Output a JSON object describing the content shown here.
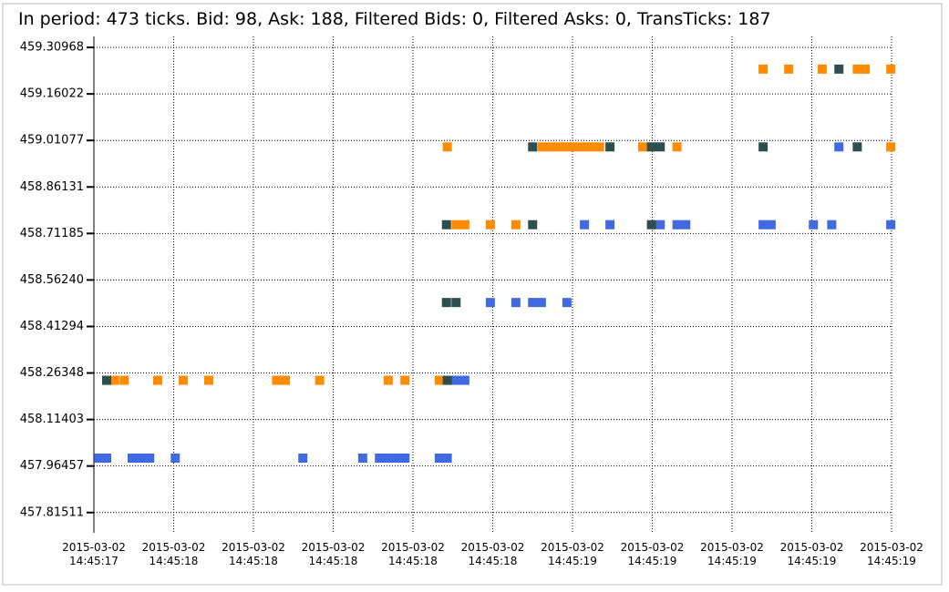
{
  "chart_data": {
    "type": "scatter",
    "title": "In period: 473 ticks. Bid: 98, Ask: 188, Filtered Bids: 0, Filtered Asks: 0, TransTicks: 187",
    "xlim": [
      0,
      10
    ],
    "xticks": [
      {
        "value": 0,
        "label": "2015-03-02\n14:45:17"
      },
      {
        "value": 1,
        "label": "2015-03-02\n14:45:18"
      },
      {
        "value": 2,
        "label": "2015-03-02\n14:45:18"
      },
      {
        "value": 3,
        "label": "2015-03-02\n14:45:18"
      },
      {
        "value": 4,
        "label": "2015-03-02\n14:45:18"
      },
      {
        "value": 5,
        "label": "2015-03-02\n14:45:18"
      },
      {
        "value": 6,
        "label": "2015-03-02\n14:45:19"
      },
      {
        "value": 7,
        "label": "2015-03-02\n14:45:19"
      },
      {
        "value": 8,
        "label": "2015-03-02\n14:45:19"
      },
      {
        "value": 9,
        "label": "2015-03-02\n14:45:19"
      },
      {
        "value": 10,
        "label": "2015-03-02\n14:45:19"
      }
    ],
    "ylim": [
      457.75,
      459.345
    ],
    "yticks": [
      457.81511,
      457.96457,
      458.11403,
      458.26348,
      458.41294,
      {
        "value": 458.5624,
        "label": "458.56240"
      },
      458.71185,
      458.86131,
      459.01077,
      459.16022,
      459.30968
    ],
    "grid": true,
    "series": [
      {
        "color": "#ff8c00",
        "x": [
          8.39,
          8.71,
          9.13,
          9.57,
          9.67,
          9.99,
          4.43,
          5.62,
          5.73,
          5.83,
          5.93,
          6.03,
          6.14,
          6.24,
          6.34,
          6.88,
          7.31,
          9.99,
          4.54,
          4.65,
          4.97,
          5.29,
          0.26,
          0.38,
          0.8,
          1.12,
          1.44,
          2.29,
          2.4,
          2.83,
          3.69,
          3.9,
          4.33
        ],
        "values": [
          459.24,
          459.24,
          459.24,
          459.24,
          459.24,
          459.24,
          458.99,
          458.99,
          458.99,
          458.99,
          458.99,
          458.99,
          458.99,
          458.99,
          458.99,
          458.99,
          458.99,
          458.99,
          458.74,
          458.74,
          458.74,
          458.74,
          458.24,
          458.24,
          458.24,
          458.24,
          458.24,
          458.24,
          458.24,
          458.24,
          458.24,
          458.24,
          458.24
        ]
      },
      {
        "color": "#4169e1",
        "x": [
          9.34,
          6.15,
          6.47,
          7.1,
          7.31,
          7.42,
          8.39,
          8.49,
          9.02,
          9.25,
          9.99,
          4.97,
          5.29,
          5.5,
          5.61,
          5.93,
          4.54,
          4.65,
          0.06,
          0.16,
          0.48,
          0.59,
          0.7,
          1.02,
          2.62,
          3.37,
          3.58,
          3.69,
          3.79,
          3.9,
          4.33,
          4.43
        ],
        "values": [
          458.99,
          458.74,
          458.74,
          458.74,
          458.74,
          458.74,
          458.74,
          458.74,
          458.74,
          458.74,
          458.74,
          458.49,
          458.49,
          458.49,
          458.49,
          458.49,
          458.24,
          458.24,
          457.99,
          457.99,
          457.99,
          457.99,
          457.99,
          457.99,
          457.99,
          457.99,
          457.99,
          457.99,
          457.99,
          457.99,
          457.99,
          457.99
        ]
      },
      {
        "color": "#2f4f4f",
        "x": [
          9.34,
          5.5,
          6.47,
          6.99,
          7.1,
          8.39,
          9.57,
          4.42,
          5.5,
          6.99,
          4.42,
          4.54,
          0.16,
          4.43
        ],
        "values": [
          459.24,
          458.99,
          458.99,
          458.99,
          458.99,
          458.99,
          458.99,
          458.74,
          458.74,
          458.74,
          458.49,
          458.49,
          458.24,
          458.24
        ]
      }
    ]
  }
}
